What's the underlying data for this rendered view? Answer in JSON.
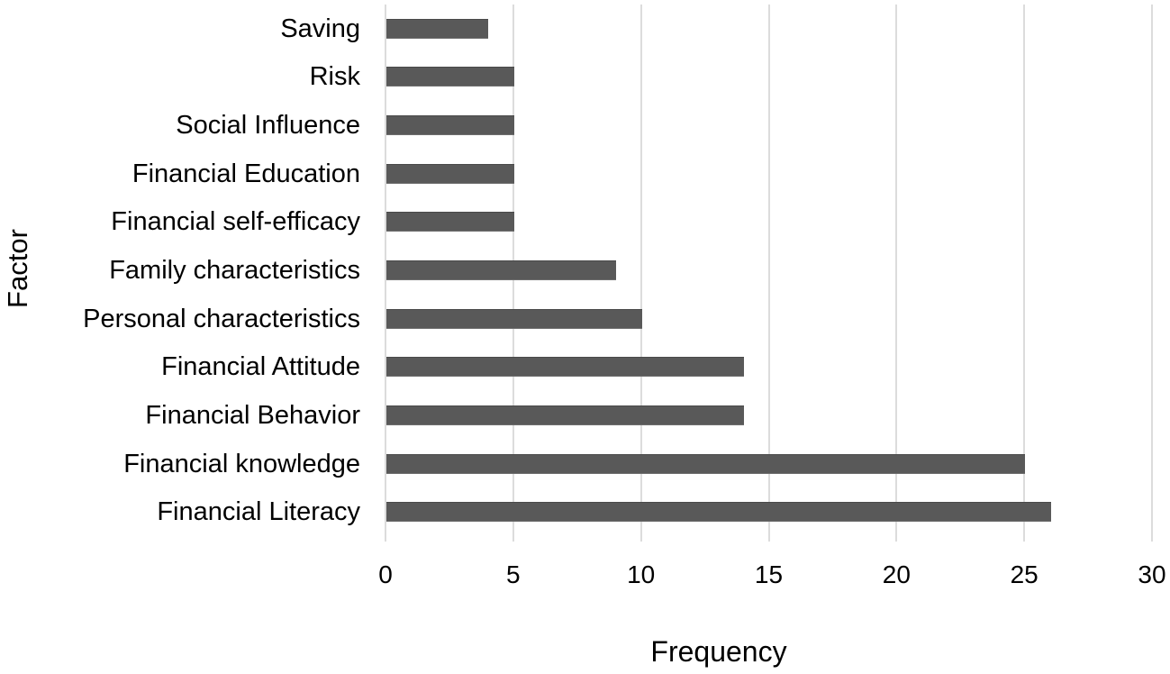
{
  "chart_data": {
    "type": "bar",
    "orientation": "horizontal",
    "title": "",
    "xlabel": "Frequency",
    "ylabel": "Factor",
    "categories": [
      "Saving",
      "Risk",
      "Social Influence",
      "Financial Education",
      "Financial self-efficacy",
      "Family characteristics",
      "Personal characteristics",
      "Financial Attitude",
      "Financial Behavior",
      "Financial knowledge",
      "Financial Literacy"
    ],
    "values": [
      4,
      5,
      5,
      5,
      5,
      9,
      10,
      14,
      14,
      25,
      26
    ],
    "xlim": [
      0,
      30
    ],
    "xticks": [
      0,
      5,
      10,
      15,
      20,
      25,
      30
    ],
    "grid": "vertical-gridlines-on",
    "legend": "none",
    "bar_color": "#595959",
    "gridline_color": "#dcdcdc",
    "text_color": "#000000"
  }
}
